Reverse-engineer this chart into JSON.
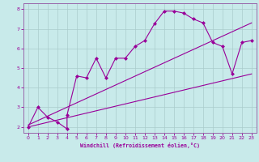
{
  "xlabel": "Windchill (Refroidissement éolien,°C)",
  "bg_color": "#c8eaea",
  "line_color": "#990099",
  "grid_color": "#aacccc",
  "spine_color": "#9966aa",
  "xmin": -0.5,
  "xmax": 23.5,
  "ymin": 1.7,
  "ymax": 8.3,
  "line1_x": [
    0,
    1,
    2,
    3,
    4,
    4,
    5,
    6,
    7,
    8,
    9,
    10,
    11,
    12,
    13,
    14,
    15,
    16,
    17,
    18,
    19,
    20,
    21,
    22,
    23
  ],
  "line1_y": [
    2.0,
    3.0,
    2.5,
    2.25,
    1.9,
    2.6,
    4.6,
    4.5,
    5.5,
    4.5,
    5.5,
    5.5,
    6.1,
    6.4,
    7.25,
    7.9,
    7.9,
    7.8,
    7.5,
    7.3,
    6.3,
    6.1,
    4.7,
    6.3,
    6.4
  ],
  "line2_x": [
    0,
    23
  ],
  "line2_y": [
    2.1,
    7.3
  ],
  "line3_x": [
    0,
    23
  ],
  "line3_y": [
    2.0,
    4.7
  ],
  "xticks": [
    0,
    1,
    2,
    3,
    4,
    5,
    6,
    7,
    8,
    9,
    10,
    11,
    12,
    13,
    14,
    15,
    16,
    17,
    18,
    19,
    20,
    21,
    22,
    23
  ],
  "yticks": [
    2,
    3,
    4,
    5,
    6,
    7,
    8
  ]
}
